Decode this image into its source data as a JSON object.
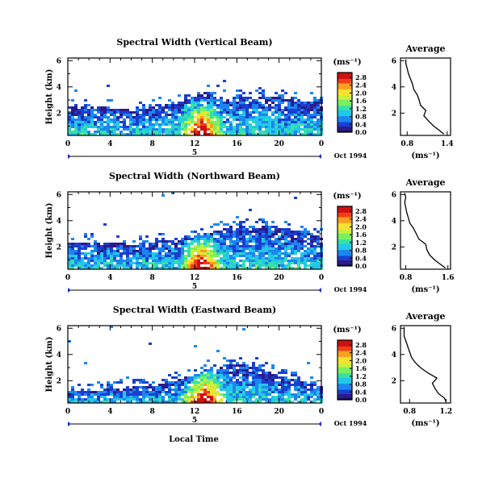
{
  "figure": {
    "x_axis_label": "Local Time",
    "date_label": "Oct 1994",
    "unit_label": "(ms⁻¹)",
    "avg_title": "Average",
    "avg_xlabel": "(ms⁻¹)",
    "height_label": "Height (km)",
    "day_label": "5"
  },
  "colors": {
    "colormap": [
      "#000000",
      "#2b1a8a",
      "#1a3fd0",
      "#1c86f0",
      "#22c8e8",
      "#36e0a8",
      "#7af060",
      "#c8f03a",
      "#f8e030",
      "#f8a020",
      "#f04018",
      "#d01010"
    ]
  },
  "chart_data": [
    {
      "type": "heatmap",
      "title": "Spectral Width (Vertical Beam)",
      "xlabel": "Local Time",
      "ylabel": "Height (km)",
      "x_ticks": [
        "0",
        "4",
        "8",
        "12",
        "16",
        "20",
        "0"
      ],
      "y_ticks": [
        "2",
        "4",
        "6"
      ],
      "xlim": [
        0,
        24
      ],
      "ylim": [
        0.3,
        6.2
      ],
      "colorbar": {
        "label": "(ms⁻¹)",
        "ticks": [
          "0.0",
          "0.4",
          "0.8",
          "1.2",
          "1.6",
          "2.0",
          "2.4",
          "2.8"
        ],
        "range": [
          0,
          3.0
        ]
      },
      "hour_top_profile": [
        [
          0,
          2.6
        ],
        [
          2,
          2.6
        ],
        [
          4,
          2.5
        ],
        [
          6,
          2.3
        ],
        [
          8,
          2.6
        ],
        [
          10,
          2.8
        ],
        [
          11,
          3.1
        ],
        [
          12,
          3.4
        ],
        [
          13,
          3.7
        ],
        [
          14,
          3.2
        ],
        [
          16,
          3.3
        ],
        [
          18,
          3.4
        ],
        [
          20,
          3.3
        ],
        [
          22,
          2.9
        ],
        [
          24,
          2.9
        ]
      ],
      "hot_region": {
        "center_hour": 12.5,
        "peak_value": 2.6
      },
      "average_profile": {
        "title": "Average",
        "xlabel": "(ms⁻¹)",
        "x_ticks": [
          "0.8",
          "1.4"
        ],
        "xlim": [
          0.7,
          1.45
        ],
        "y_ticks": [
          "2",
          "4",
          "6"
        ],
        "points": [
          [
            1.35,
            0.4
          ],
          [
            1.28,
            0.7
          ],
          [
            1.2,
            1.0
          ],
          [
            1.12,
            1.4
          ],
          [
            1.05,
            1.8
          ],
          [
            1.08,
            2.2
          ],
          [
            1.0,
            2.6
          ],
          [
            0.98,
            3.0
          ],
          [
            0.95,
            3.4
          ],
          [
            0.9,
            3.8
          ],
          [
            0.88,
            4.2
          ],
          [
            0.85,
            4.6
          ],
          [
            0.82,
            5.0
          ],
          [
            0.8,
            5.4
          ],
          [
            0.78,
            5.8
          ],
          [
            0.78,
            6.1
          ]
        ]
      }
    },
    {
      "type": "heatmap",
      "title": "Spectral Width (Northward Beam)",
      "xlabel": "Local Time",
      "ylabel": "Height (km)",
      "x_ticks": [
        "0",
        "4",
        "8",
        "12",
        "16",
        "20",
        "0"
      ],
      "y_ticks": [
        "2",
        "4",
        "6"
      ],
      "xlim": [
        0,
        24
      ],
      "ylim": [
        0.3,
        6.2
      ],
      "colorbar": {
        "label": "(ms⁻¹)",
        "ticks": [
          "0.0",
          "0.4",
          "0.8",
          "1.2",
          "1.6",
          "2.0",
          "2.4",
          "2.8"
        ],
        "range": [
          0,
          3.0
        ]
      },
      "hour_top_profile": [
        [
          0,
          2.4
        ],
        [
          2,
          2.5
        ],
        [
          4,
          2.4
        ],
        [
          6,
          2.3
        ],
        [
          8,
          2.5
        ],
        [
          10,
          2.6
        ],
        [
          12,
          2.9
        ],
        [
          13,
          3.1
        ],
        [
          14,
          3.3
        ],
        [
          15,
          3.6
        ],
        [
          16,
          3.8
        ],
        [
          18,
          3.7
        ],
        [
          20,
          3.6
        ],
        [
          22,
          3.2
        ],
        [
          24,
          2.9
        ]
      ],
      "hot_region": {
        "center_hour": 12.5,
        "peak_value": 2.7
      },
      "average_profile": {
        "title": "Average",
        "xlabel": "(ms⁻¹)",
        "x_ticks": [
          "0.8",
          "1.6"
        ],
        "xlim": [
          0.7,
          1.65
        ],
        "y_ticks": [
          "2",
          "4",
          "6"
        ],
        "points": [
          [
            1.55,
            0.4
          ],
          [
            1.45,
            0.7
          ],
          [
            1.35,
            1.0
          ],
          [
            1.25,
            1.4
          ],
          [
            1.2,
            1.8
          ],
          [
            1.18,
            2.2
          ],
          [
            1.05,
            2.6
          ],
          [
            1.0,
            3.0
          ],
          [
            0.95,
            3.4
          ],
          [
            0.88,
            3.8
          ],
          [
            0.85,
            4.2
          ],
          [
            0.82,
            4.6
          ],
          [
            0.8,
            5.0
          ],
          [
            0.78,
            5.4
          ],
          [
            0.8,
            5.8
          ],
          [
            0.78,
            6.1
          ]
        ]
      }
    },
    {
      "type": "heatmap",
      "title": "Spectral Width (Eastward Beam)",
      "xlabel": "Local Time",
      "ylabel": "Height (km)",
      "x_ticks": [
        "0",
        "4",
        "8",
        "12",
        "16",
        "20",
        "0"
      ],
      "y_ticks": [
        "2",
        "4",
        "6"
      ],
      "xlim": [
        0,
        24
      ],
      "ylim": [
        0.3,
        6.2
      ],
      "colorbar": {
        "label": "(ms⁻¹)",
        "ticks": [
          "0.0",
          "0.4",
          "0.8",
          "1.2",
          "1.6",
          "2.0",
          "2.4",
          "2.8"
        ],
        "range": [
          0,
          3.0
        ]
      },
      "hour_top_profile": [
        [
          0,
          1.3
        ],
        [
          2,
          1.3
        ],
        [
          4,
          1.5
        ],
        [
          6,
          1.6
        ],
        [
          8,
          1.7
        ],
        [
          10,
          2.1
        ],
        [
          12,
          2.6
        ],
        [
          13,
          3.0
        ],
        [
          14,
          3.2
        ],
        [
          16,
          3.4
        ],
        [
          18,
          3.1
        ],
        [
          20,
          2.4
        ],
        [
          22,
          2.0
        ],
        [
          24,
          1.8
        ]
      ],
      "hot_region": {
        "center_hour": 12.8,
        "peak_value": 2.6
      },
      "average_profile": {
        "title": "Average",
        "xlabel": "(ms⁻¹)",
        "x_ticks": [
          "0.8",
          "1.2"
        ],
        "xlim": [
          0.7,
          1.25
        ],
        "y_ticks": [
          "2",
          "4",
          "6"
        ],
        "points": [
          [
            1.2,
            0.4
          ],
          [
            1.18,
            0.7
          ],
          [
            1.12,
            1.0
          ],
          [
            1.08,
            1.4
          ],
          [
            1.05,
            1.8
          ],
          [
            1.1,
            2.2
          ],
          [
            1.0,
            2.6
          ],
          [
            0.92,
            3.0
          ],
          [
            0.86,
            3.4
          ],
          [
            0.82,
            3.8
          ],
          [
            0.8,
            4.2
          ],
          [
            0.78,
            4.6
          ],
          [
            0.76,
            5.0
          ],
          [
            0.74,
            5.4
          ],
          [
            0.74,
            5.8
          ],
          [
            0.74,
            6.1
          ]
        ]
      }
    }
  ]
}
